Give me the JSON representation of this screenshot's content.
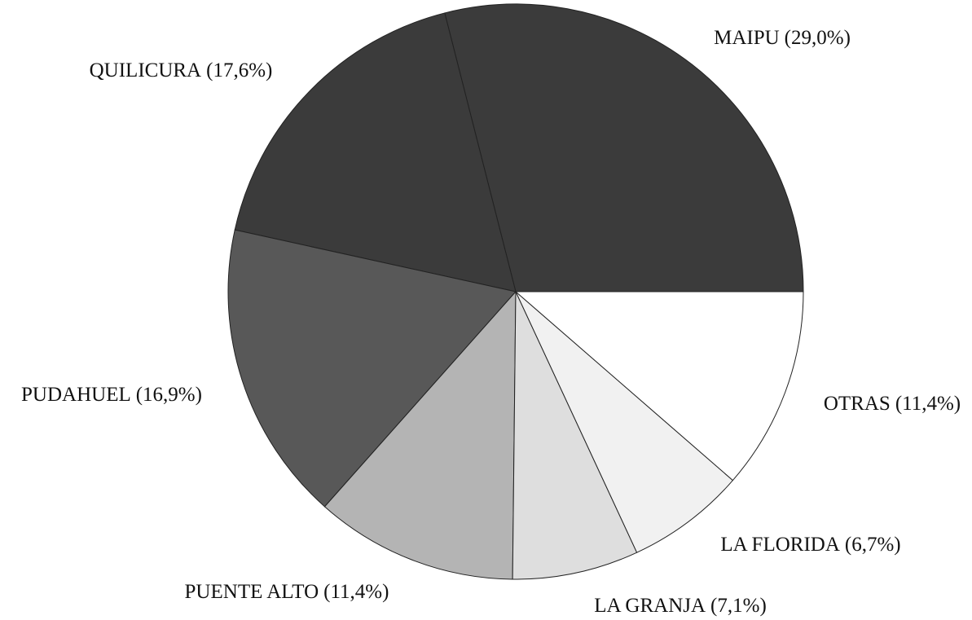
{
  "chart_data": {
    "type": "pie",
    "categories": [
      "MAIPU",
      "QUILICURA",
      "PUDAHUEL",
      "PUENTE ALTO",
      "LA GRANJA",
      "LA FLORIDA",
      "OTRAS"
    ],
    "values": [
      29.0,
      17.6,
      16.9,
      11.4,
      7.1,
      6.7,
      11.4
    ],
    "value_labels": [
      "(29,0%)",
      "(17,6%)",
      "(16,9%)",
      "(11,4%)",
      "(7,1%)",
      "(6,7%)",
      "(11,4%)"
    ],
    "colors": [
      "#3b3b3b",
      "#3b3b3b",
      "#585858",
      "#b4b4b4",
      "#dedede",
      "#f1f1f1",
      "#ffffff"
    ]
  }
}
